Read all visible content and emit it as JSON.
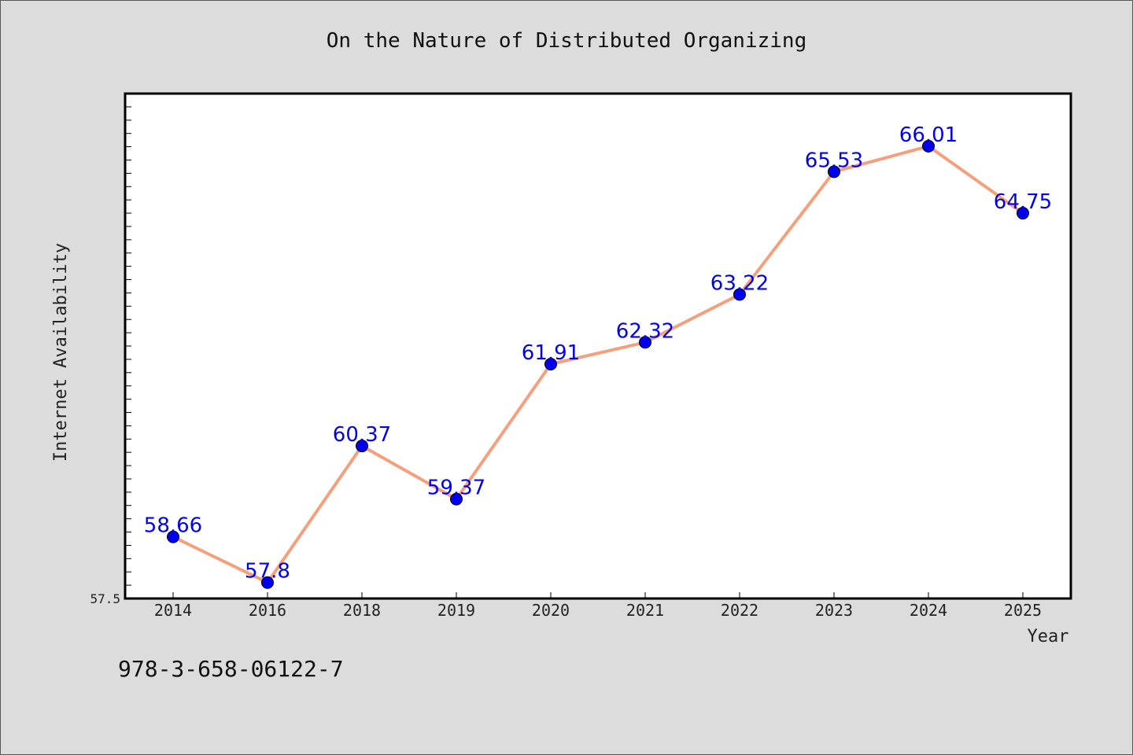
{
  "chart_data": {
    "type": "line",
    "title": "On the Nature of Distributed Organizing",
    "xlabel": "Year",
    "ylabel": "Internet Availability",
    "categories": [
      "2014",
      "2016",
      "2018",
      "2019",
      "2020",
      "2021",
      "2022",
      "2023",
      "2024",
      "2025"
    ],
    "values": [
      58.66,
      57.8,
      60.37,
      59.37,
      61.91,
      62.32,
      63.22,
      65.53,
      66.01,
      64.75
    ],
    "data_labels": [
      "58.66",
      "57.8",
      "60.37",
      "59.37",
      "61.91",
      "62.32",
      "63.22",
      "65.53",
      "66.01",
      "64.75"
    ],
    "ylim": [
      57.5,
      67.0
    ],
    "yticks_labeled": [
      "57.5"
    ],
    "grid": false,
    "line_color": "#f4a07c",
    "marker_color": "#0000ee",
    "label_color": "#0000ee"
  },
  "footer": {
    "isbn": "978-3-658-06122-7"
  }
}
